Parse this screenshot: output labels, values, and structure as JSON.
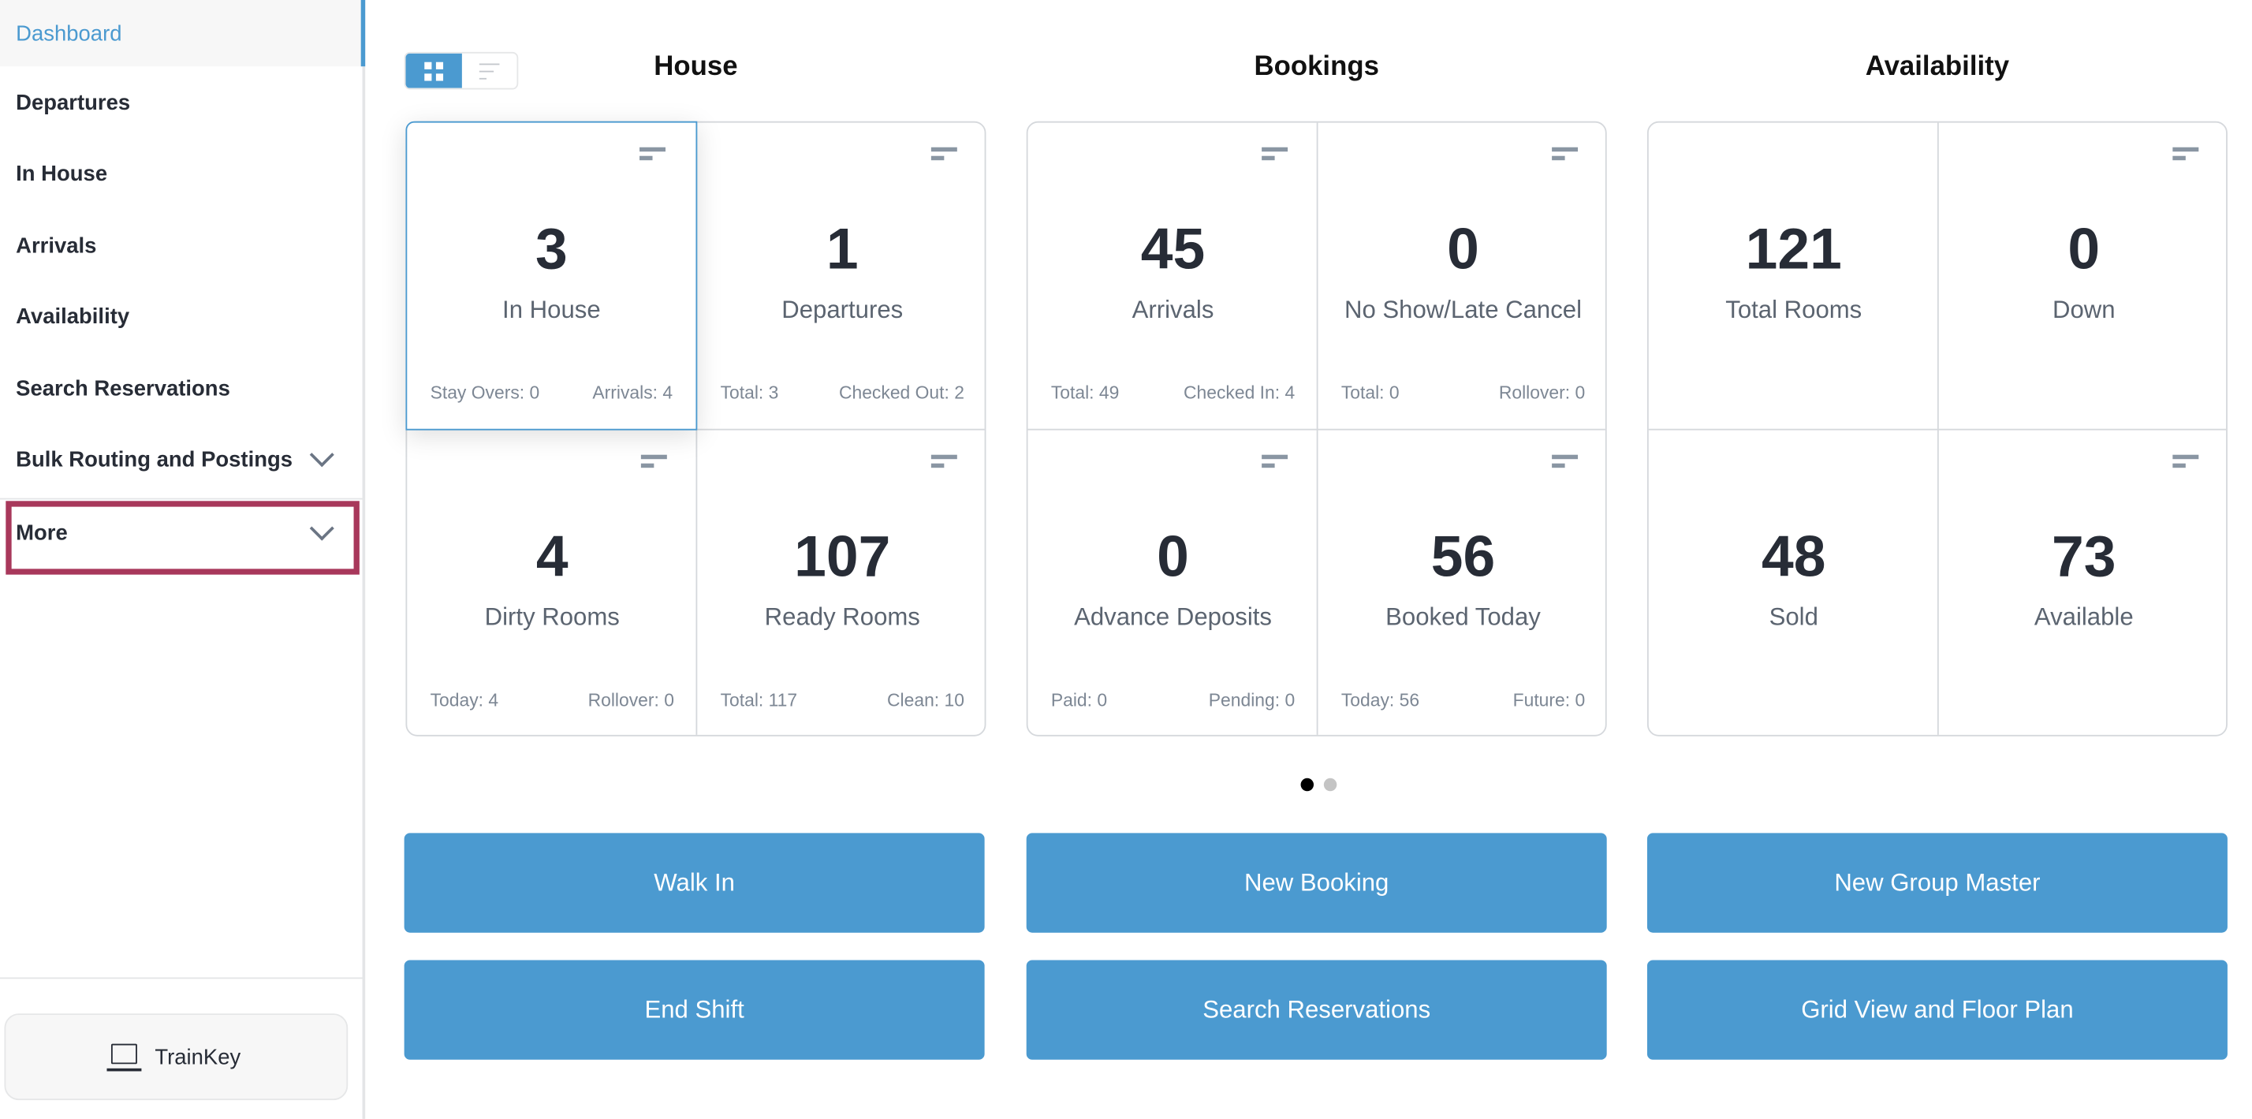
{
  "sidebar": {
    "items": [
      {
        "label": "Dashboard",
        "active": true
      },
      {
        "label": "Departures"
      },
      {
        "label": "In House"
      },
      {
        "label": "Arrivals"
      },
      {
        "label": "Availability"
      },
      {
        "label": "Search Reservations"
      },
      {
        "label": "Bulk Routing and Postings",
        "expandable": true
      },
      {
        "label": "More",
        "expandable": true,
        "highlighted": true
      }
    ],
    "trainkey_label": "TrainKey",
    "highlight_color": "#a8385b"
  },
  "view_toggle": {
    "selected": "grid",
    "options": [
      "grid-icon",
      "list-icon"
    ]
  },
  "sections": [
    {
      "title": "House",
      "cells": [
        {
          "value": "3",
          "label": "In House",
          "left": "Stay Overs: 0",
          "right": "Arrivals: 4"
        },
        {
          "value": "1",
          "label": "Departures",
          "left": "Total: 3",
          "right": "Checked Out: 2"
        },
        {
          "value": "4",
          "label": "Dirty Rooms",
          "left": "Today: 4",
          "right": "Rollover: 0"
        },
        {
          "value": "107",
          "label": "Ready Rooms",
          "left": "Total: 117",
          "right": "Clean: 10"
        }
      ]
    },
    {
      "title": "Bookings",
      "cells": [
        {
          "value": "45",
          "label": "Arrivals",
          "left": "Total: 49",
          "right": "Checked In: 4"
        },
        {
          "value": "0",
          "label": "No Show/Late Cancel",
          "left": "Total: 0",
          "right": "Rollover: 0"
        },
        {
          "value": "0",
          "label": "Advance Deposits",
          "left": "Paid: 0",
          "right": "Pending: 0"
        },
        {
          "value": "56",
          "label": "Booked Today",
          "left": "Today: 56",
          "right": "Future: 0"
        }
      ]
    },
    {
      "title": "Availability",
      "cells": [
        {
          "value": "121",
          "label": "Total Rooms",
          "left": "",
          "right": ""
        },
        {
          "value": "0",
          "label": "Down",
          "left": "",
          "right": ""
        },
        {
          "value": "48",
          "label": "Sold",
          "left": "",
          "right": ""
        },
        {
          "value": "73",
          "label": "Available",
          "left": "",
          "right": ""
        }
      ]
    }
  ],
  "pagination": {
    "pages": 2,
    "current": 1
  },
  "buttons": [
    "Walk In",
    "New Booking",
    "New Group Master",
    "End Shift",
    "Search Reservations",
    "Grid View and Floor Plan"
  ],
  "colors": {
    "accent": "#4b9ad0",
    "text": "#272c36"
  }
}
